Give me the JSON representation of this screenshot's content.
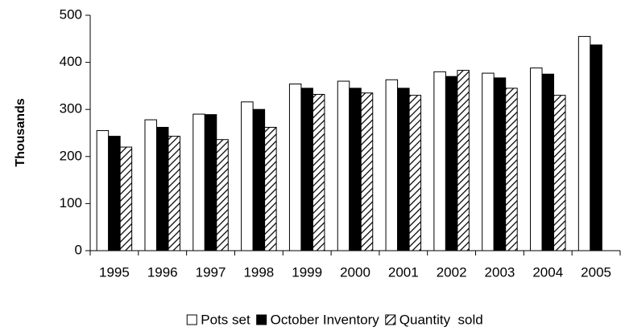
{
  "chart_data": {
    "type": "bar",
    "y_label": "Thousands",
    "categories": [
      "1995",
      "1996",
      "1997",
      "1998",
      "1999",
      "2000",
      "2001",
      "2002",
      "2003",
      "2004",
      "2005"
    ],
    "series": [
      {
        "name": "Pots set",
        "color": "#ffffff",
        "hatch": false,
        "values": [
          255,
          278,
          290,
          316,
          354,
          360,
          363,
          380,
          377,
          388,
          455
        ]
      },
      {
        "name": "October Inventory",
        "color": "#000000",
        "hatch": false,
        "values": [
          243,
          262,
          289,
          300,
          345,
          345,
          345,
          370,
          367,
          375,
          437
        ]
      },
      {
        "name": "Quantity  sold",
        "color": "#ffffff",
        "hatch": true,
        "values": [
          220,
          243,
          236,
          262,
          332,
          335,
          330,
          383,
          345,
          330,
          null
        ]
      }
    ],
    "ylim": [
      0,
      500
    ],
    "yticks": [
      0,
      100,
      200,
      300,
      400,
      500
    ],
    "grid": false,
    "legend": "bottom"
  }
}
